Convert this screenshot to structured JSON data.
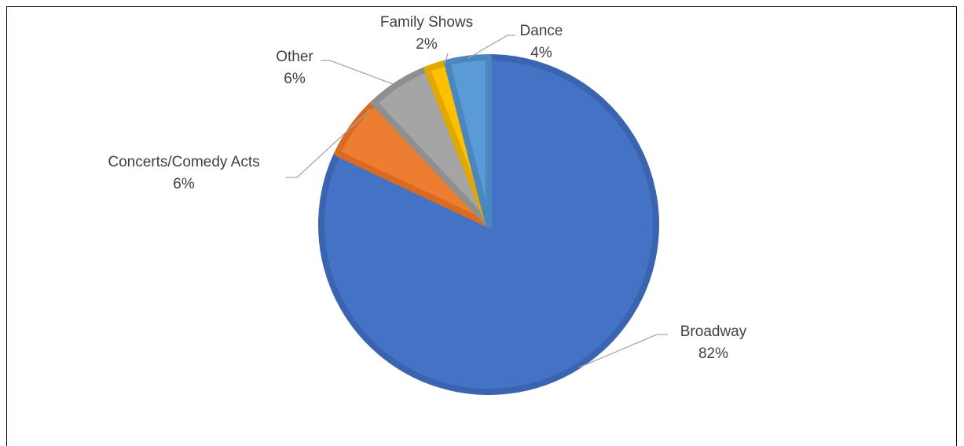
{
  "chart_data": {
    "type": "pie",
    "title": "",
    "start_angle_deg": 0,
    "direction": "clockwise",
    "slices": [
      {
        "label": "Broadway",
        "value": 82,
        "display": "82%",
        "color": "#4472C4",
        "border": "#3A64B0"
      },
      {
        "label": "Concerts/Comedy Acts",
        "value": 6,
        "display": "6%",
        "color": "#ED7D31",
        "border": "#D86A22"
      },
      {
        "label": "Other",
        "value": 6,
        "display": "6%",
        "color": "#A5A5A5",
        "border": "#8F8F8F"
      },
      {
        "label": "Family Shows",
        "value": 2,
        "display": "2%",
        "color": "#FFC000",
        "border": "#E0A800"
      },
      {
        "label": "Dance",
        "value": 4,
        "display": "4%",
        "color": "#5B9BD5",
        "border": "#4A87C0"
      }
    ]
  }
}
